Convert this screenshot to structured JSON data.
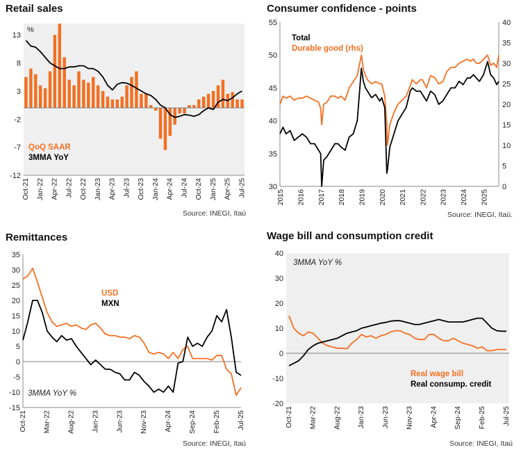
{
  "colors": {
    "orange": "#f36f21",
    "black": "#000000",
    "panel_bg": "#efefef",
    "zero_line": "#7f7f7f"
  },
  "chart_data": [
    {
      "id": "retail",
      "type": "bar",
      "title": "Retail sales",
      "source": "Source: INEGI, Itaú",
      "unit_label": "%",
      "ylim": [
        -12,
        15
      ],
      "yticks": [
        -12,
        -7,
        -2,
        3,
        8,
        13
      ],
      "x_tick_labels": [
        "Oct-21",
        "Jan-22",
        "Apr-22",
        "Jul-22",
        "Oct-22",
        "Jan-23",
        "Apr-23",
        "Jul-23",
        "Oct-23",
        "Jan-24",
        "Apr-24",
        "Jul-24",
        "Oct-24",
        "Jan-25",
        "Apr-25",
        "Jul-25"
      ],
      "x_tick_index": [
        0,
        3,
        6,
        9,
        12,
        15,
        18,
        21,
        24,
        27,
        30,
        33,
        36,
        39,
        42,
        45
      ],
      "legend": [
        "QoQ SAAR",
        "3MMA YoY"
      ],
      "series": [
        {
          "name": "QoQ SAAR",
          "kind": "bar",
          "color": "#f36f21",
          "values": [
            5.5,
            7,
            6,
            4,
            3.5,
            6.5,
            13,
            15,
            9,
            5,
            4,
            6.5,
            5,
            4.5,
            5.5,
            4,
            3,
            2,
            1.5,
            1.5,
            2,
            4,
            5.5,
            6.5,
            2.5,
            2.5,
            0.5,
            -0.5,
            -5.5,
            -7.5,
            -5,
            -3,
            -1,
            -1,
            0.5,
            0.5,
            1.5,
            2,
            2.5,
            3,
            4,
            5,
            2.5,
            2.8,
            1.5,
            1.5
          ]
        },
        {
          "name": "3MMA YoY",
          "kind": "line",
          "color": "#000000",
          "values": [
            12,
            11,
            10.8,
            10,
            9,
            8,
            7.5,
            7,
            7,
            7.3,
            7.3,
            7.5,
            7.5,
            7,
            7,
            6.5,
            5.5,
            4,
            3.2,
            4.2,
            4.5,
            4.4,
            4,
            3.5,
            3,
            2.5,
            2.2,
            1.5,
            0.5,
            0,
            -1.2,
            -1.7,
            -1.5,
            -1.2,
            -1.3,
            -1.5,
            -1.2,
            -0.5,
            0,
            -0.3,
            1,
            1.5,
            1.3,
            1.8,
            2.5,
            3
          ]
        }
      ]
    },
    {
      "id": "confidence",
      "type": "line",
      "title": "Consumer confidence - points",
      "source": "Source: INEGI, Itaú.",
      "ylim": [
        30,
        55
      ],
      "yticks": [
        30,
        35,
        40,
        45,
        50,
        55
      ],
      "y2lim": [
        0,
        40
      ],
      "y2ticks": [
        0,
        5,
        10,
        15,
        20,
        25,
        30,
        35,
        40
      ],
      "x_tick_labels": [
        "2015",
        "2016",
        "2017",
        "2018",
        "2019",
        "2020",
        "2021",
        "2022",
        "2023",
        "2024",
        "2025"
      ],
      "x_start": 2015.0,
      "x_end": 2025.75,
      "legend": [
        "Total",
        "Durable good (rhs)"
      ],
      "series": [
        {
          "name": "Total",
          "axis": "left",
          "color": "#000000",
          "x": [
            2015.0,
            2015.15,
            2015.3,
            2015.5,
            2015.7,
            2015.9,
            2016.1,
            2016.3,
            2016.5,
            2016.7,
            2016.9,
            2017.0,
            2017.05,
            2017.15,
            2017.3,
            2017.5,
            2017.7,
            2017.85,
            2018.0,
            2018.2,
            2018.4,
            2018.6,
            2018.8,
            2018.9,
            2019.0,
            2019.1,
            2019.2,
            2019.3,
            2019.5,
            2019.7,
            2019.9,
            2020.0,
            2020.15,
            2020.25,
            2020.28,
            2020.4,
            2020.6,
            2020.8,
            2021.0,
            2021.2,
            2021.4,
            2021.5,
            2021.7,
            2021.9,
            2022.0,
            2022.2,
            2022.4,
            2022.6,
            2022.8,
            2023.0,
            2023.2,
            2023.4,
            2023.6,
            2023.8,
            2024.0,
            2024.2,
            2024.35,
            2024.5,
            2024.65,
            2024.8,
            2025.0,
            2025.2,
            2025.35,
            2025.5,
            2025.65,
            2025.75
          ],
          "values": [
            38,
            39,
            38,
            38.5,
            37,
            37.5,
            38,
            37.5,
            36.5,
            36.5,
            35.5,
            35,
            30,
            34,
            34.5,
            35.5,
            36.5,
            36.5,
            36,
            35.5,
            37.5,
            38,
            40,
            44,
            48,
            46,
            45,
            44.5,
            43.5,
            44,
            43,
            43.5,
            42,
            32,
            32.5,
            36,
            38,
            40,
            41,
            42,
            44.5,
            45,
            44.5,
            44.5,
            44,
            43,
            44.5,
            44,
            42.5,
            43,
            44,
            45,
            45,
            46,
            45.5,
            46.5,
            46.5,
            47,
            46.5,
            46,
            47,
            49,
            47,
            46.5,
            45.5,
            46
          ]
        },
        {
          "name": "Durable good (rhs)",
          "axis": "right",
          "color": "#f36f21",
          "x": [
            2015.0,
            2015.15,
            2015.3,
            2015.5,
            2015.7,
            2015.9,
            2016.1,
            2016.3,
            2016.5,
            2016.7,
            2016.9,
            2017.0,
            2017.05,
            2017.15,
            2017.3,
            2017.5,
            2017.7,
            2017.85,
            2018.0,
            2018.2,
            2018.4,
            2018.6,
            2018.8,
            2018.9,
            2019.0,
            2019.1,
            2019.2,
            2019.3,
            2019.5,
            2019.7,
            2019.9,
            2020.0,
            2020.15,
            2020.25,
            2020.28,
            2020.4,
            2020.6,
            2020.8,
            2021.0,
            2021.2,
            2021.4,
            2021.5,
            2021.7,
            2021.9,
            2022.0,
            2022.2,
            2022.4,
            2022.6,
            2022.8,
            2023.0,
            2023.2,
            2023.4,
            2023.6,
            2023.8,
            2024.0,
            2024.2,
            2024.35,
            2024.5,
            2024.65,
            2024.8,
            2025.0,
            2025.2,
            2025.35,
            2025.5,
            2025.65,
            2025.75
          ],
          "values": [
            20,
            22,
            21.5,
            22,
            21,
            21.5,
            21.5,
            22,
            21.5,
            21,
            20.5,
            19,
            15,
            20,
            20.5,
            22,
            22,
            21.5,
            22,
            21,
            24,
            25.5,
            27,
            29.5,
            32,
            28.5,
            27,
            26,
            25,
            25.5,
            25,
            25,
            22,
            15,
            10,
            15,
            18,
            20,
            21,
            22,
            24.5,
            26,
            25,
            26,
            26,
            24,
            27,
            26.5,
            25,
            25.5,
            28,
            29,
            29,
            30,
            30.5,
            31,
            30.5,
            31,
            30,
            30,
            31,
            32,
            29.5,
            30,
            29,
            32
          ]
        }
      ]
    },
    {
      "id": "remittances",
      "type": "line",
      "title": "Remittances",
      "source": "Source: INEGI, Itaú",
      "unit_label": "3MMA YoY %",
      "ylim": [
        -15,
        35
      ],
      "yticks": [
        -15,
        -10,
        -5,
        0,
        5,
        10,
        15,
        20,
        25,
        30,
        35
      ],
      "x_tick_labels": [
        "Oct-21",
        "Mar-22",
        "Aug-22",
        "Jan-23",
        "Jun-23",
        "Nov-23",
        "Apr-24",
        "Sep-24",
        "Feb-25",
        "Jul-25"
      ],
      "x_tick_index": [
        0,
        5,
        10,
        15,
        20,
        25,
        30,
        35,
        40,
        45
      ],
      "legend": [
        "USD",
        "MXN"
      ],
      "series": [
        {
          "name": "USD",
          "color": "#f36f21",
          "values": [
            27,
            28,
            30.5,
            26,
            21,
            16,
            13,
            11.5,
            12,
            12.5,
            11.5,
            12,
            11,
            10.5,
            12,
            12.5,
            11,
            9,
            8.5,
            8.5,
            8,
            8,
            7.5,
            8.5,
            8,
            6,
            3,
            2.5,
            3,
            2.5,
            1,
            3,
            1,
            4,
            5,
            1,
            1,
            1,
            1,
            0.5,
            2,
            2,
            -2.5,
            -4,
            -11,
            -8.5
          ]
        },
        {
          "name": "MXN",
          "color": "#000000",
          "values": [
            7,
            13,
            20,
            20,
            16,
            10,
            8,
            6.5,
            8.5,
            7,
            7.5,
            5,
            3,
            1,
            -1,
            0.5,
            -1,
            -2.5,
            -2.5,
            -3.5,
            -4,
            -6,
            -6,
            -3.5,
            -4.5,
            -6.5,
            -8,
            -10,
            -9,
            -10,
            -8,
            -10,
            -0.5,
            0,
            8,
            5,
            6,
            5,
            8,
            10,
            15,
            13,
            17,
            8,
            -3.5,
            -4.5
          ]
        }
      ]
    },
    {
      "id": "wage",
      "type": "line",
      "title": "Wage bill and consumption credit",
      "source": "Source: INEGI, Itaú",
      "unit_label": "3MMA YoY %",
      "ylim": [
        -20,
        40
      ],
      "yticks": [
        -20,
        -10,
        0,
        10,
        20,
        30,
        40
      ],
      "x_tick_labels": [
        "Oct-21",
        "Mar-22",
        "Aug-22",
        "Jan-23",
        "Jun-23",
        "Nov-23",
        "Apr-24",
        "Sep-24",
        "Feb-25",
        "Jul-25"
      ],
      "x_tick_index": [
        0,
        5,
        10,
        15,
        20,
        25,
        30,
        35,
        40,
        45
      ],
      "legend": [
        "Real wage bill",
        "Real consump. credit"
      ],
      "series": [
        {
          "name": "Real wage bill",
          "color": "#f36f21",
          "values": [
            15,
            10,
            8,
            7,
            8.5,
            8,
            6,
            4,
            3,
            2.5,
            2,
            2,
            1.8,
            4,
            5.5,
            7.5,
            6.5,
            7,
            6,
            7,
            7.5,
            8.5,
            9,
            9,
            8,
            7.5,
            6,
            5.5,
            5.5,
            7.5,
            7.5,
            6,
            5,
            5,
            6,
            5,
            4,
            3.5,
            3,
            2,
            2.5,
            1,
            1,
            1.5,
            1.5,
            1.5
          ]
        },
        {
          "name": "Real consump. credit",
          "color": "#000000",
          "values": [
            -5,
            -4,
            -3,
            -1,
            1.5,
            3,
            4,
            4.5,
            5,
            5.5,
            6,
            7,
            8,
            8.5,
            9,
            10,
            10.5,
            11,
            11.5,
            12,
            12.3,
            12.8,
            13,
            13,
            12.5,
            12,
            11.5,
            11.5,
            12,
            12.5,
            13,
            13.5,
            13,
            12.5,
            12.5,
            12.5,
            12.5,
            13,
            13.5,
            14,
            14,
            12,
            10,
            9,
            8.8,
            8.8
          ]
        }
      ]
    }
  ]
}
